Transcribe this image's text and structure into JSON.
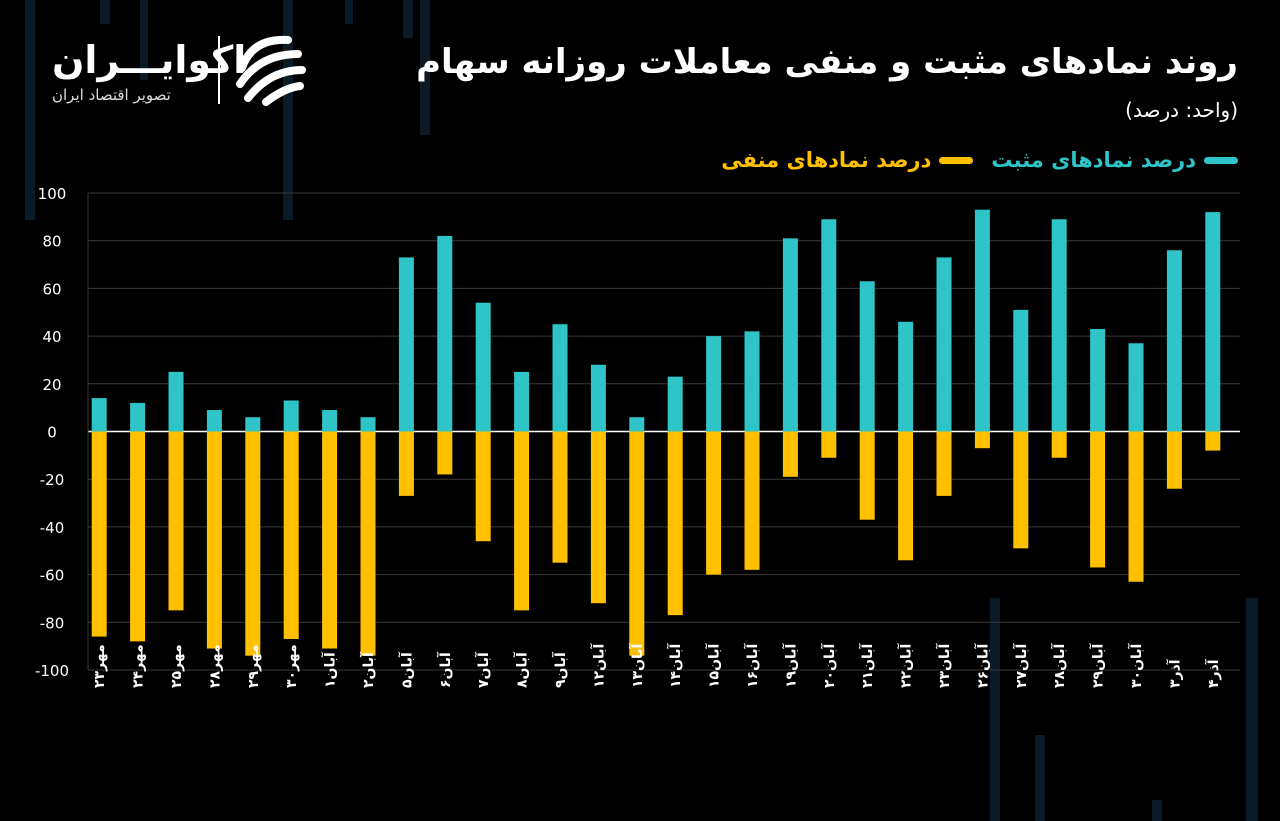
{
  "header": {
    "title": "روند نمادهای مثبت و منفی معاملات روزانه سهام",
    "subtitle": "(واحد: درصد)"
  },
  "brand": {
    "name": "اکوایـــران",
    "tagline": "تصویر اقتصاد ایران",
    "logo_icon": "ekoiran-logo-icon"
  },
  "legend": {
    "positive_label": "درصد نمادهای مثبت",
    "negative_label": "درصد نمادهای منفی"
  },
  "colors": {
    "positive": "#2EC4C8",
    "negative": "#FFC000",
    "background": "#000000",
    "grid": "#3a3a3a",
    "zero_line": "#ffffff"
  },
  "chart_data": {
    "type": "bar",
    "categories": [
      "مهر۲۳",
      "مهر۲۴",
      "مهر۲۵",
      "مهر۲۸",
      "مهر۲۹",
      "مهر۳۰",
      "آبان۱",
      "آبان۲",
      "آبان۵",
      "آبان۶",
      "آبان۷",
      "آبان۸",
      "آبان۹",
      "آبان۱۲",
      "آبان۱۳",
      "آبان۱۴",
      "آبان۱۵",
      "آبان۱۶",
      "آبان۱۹",
      "آبان۲۰",
      "آبان۲۱",
      "آبان۲۲",
      "آبان۲۳",
      "آبان۲۶",
      "آبان۲۷",
      "آبان۲۸",
      "آبان۲۹",
      "آبان۳۰",
      "آذر۳",
      "آذر۴"
    ],
    "series": [
      {
        "name": "درصد نمادهای مثبت",
        "values": [
          14,
          12,
          25,
          9,
          6,
          13,
          9,
          6,
          73,
          82,
          54,
          25,
          45,
          28,
          6,
          23,
          40,
          42,
          81,
          89,
          63,
          46,
          73,
          93,
          51,
          89,
          43,
          37,
          76,
          92
        ]
      },
      {
        "name": "درصد نمادهای منفی",
        "values": [
          -86,
          -88,
          -75,
          -91,
          -94,
          -87,
          -91,
          -94,
          -27,
          -18,
          -46,
          -75,
          -55,
          -72,
          -94,
          -77,
          -60,
          -58,
          -19,
          -11,
          -37,
          -54,
          -27,
          -7,
          -49,
          -11,
          -57,
          -63,
          -24,
          -8
        ]
      }
    ],
    "yticks": [
      "100",
      "80",
      "60",
      "40",
      "20",
      "0",
      "-20",
      "-40",
      "-60",
      "-80",
      "-100"
    ],
    "ylim": [
      -100,
      100
    ],
    "grid": true,
    "legend_position": "top-right"
  }
}
